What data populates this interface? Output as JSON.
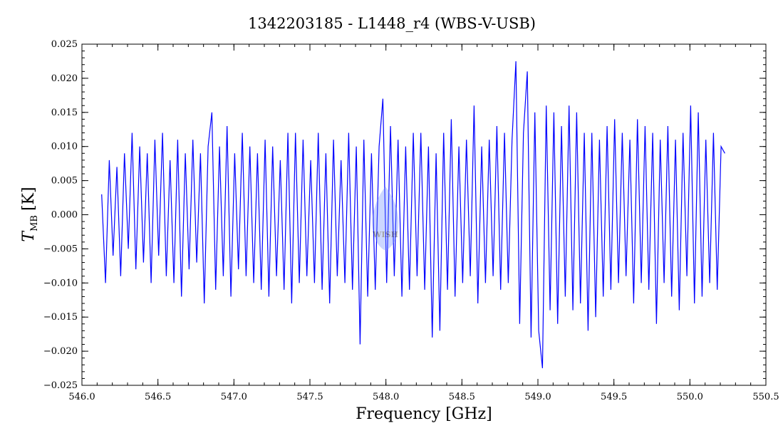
{
  "chart_data": {
    "type": "line",
    "title": "1342203185 - L1448_r4 (WBS-V-USB)",
    "xlabel": "Frequency [GHz]",
    "ylabel_main": "T",
    "ylabel_sub": "MB",
    "ylabel_unit": "[K]",
    "xlim": [
      546.0,
      550.5
    ],
    "ylim": [
      -0.025,
      0.025
    ],
    "x_range": [
      546.13,
      550.23
    ],
    "xticks": [
      546.0,
      546.5,
      547.0,
      547.5,
      548.0,
      548.5,
      549.0,
      549.5,
      550.0,
      550.5
    ],
    "xtick_labels": [
      "546.0",
      "546.5",
      "547.0",
      "547.5",
      "548.0",
      "548.5",
      "549.0",
      "549.5",
      "550.0",
      "550.5"
    ],
    "yticks": [
      0.025,
      0.02,
      0.015,
      0.01,
      0.005,
      0.0,
      -0.005,
      -0.01,
      -0.015,
      -0.02,
      -0.025
    ],
    "ytick_labels": [
      "0.025",
      "0.020",
      "0.015",
      "0.010",
      "0.005",
      "0.000",
      "−0.005",
      "−0.010",
      "−0.015",
      "−0.020",
      "−0.025"
    ],
    "grid": false,
    "series_color": "#0000ff",
    "watermark_text": "WISH",
    "values": [
      0.003,
      -0.01,
      0.008,
      -0.006,
      0.007,
      -0.009,
      0.009,
      -0.005,
      0.012,
      -0.008,
      0.01,
      -0.007,
      0.009,
      -0.01,
      0.011,
      -0.006,
      0.012,
      -0.009,
      0.008,
      -0.01,
      0.011,
      -0.012,
      0.009,
      -0.008,
      0.011,
      -0.007,
      0.009,
      -0.013,
      0.01,
      0.015,
      -0.011,
      0.01,
      -0.009,
      0.013,
      -0.012,
      0.009,
      -0.008,
      0.012,
      -0.009,
      0.01,
      -0.01,
      0.009,
      -0.011,
      0.011,
      -0.012,
      0.01,
      -0.009,
      0.008,
      -0.011,
      0.012,
      -0.013,
      0.012,
      -0.01,
      0.011,
      -0.009,
      0.008,
      -0.01,
      0.012,
      -0.011,
      0.009,
      -0.013,
      0.011,
      -0.009,
      0.008,
      -0.01,
      0.012,
      -0.011,
      0.01,
      -0.019,
      0.011,
      -0.012,
      0.009,
      -0.011,
      0.01,
      0.017,
      -0.01,
      0.013,
      -0.009,
      0.011,
      -0.012,
      0.01,
      -0.011,
      0.012,
      -0.009,
      0.012,
      -0.011,
      0.01,
      -0.018,
      0.009,
      -0.017,
      0.012,
      -0.011,
      0.014,
      -0.012,
      0.01,
      -0.01,
      0.011,
      -0.009,
      0.016,
      -0.013,
      0.01,
      -0.01,
      0.011,
      -0.009,
      0.013,
      -0.011,
      0.012,
      -0.01,
      0.011,
      0.0225,
      -0.016,
      0.012,
      0.021,
      -0.018,
      0.015,
      -0.017,
      -0.0225,
      0.016,
      -0.014,
      0.015,
      -0.016,
      0.013,
      -0.012,
      0.016,
      -0.014,
      0.015,
      -0.013,
      0.012,
      -0.017,
      0.012,
      -0.015,
      0.011,
      -0.012,
      0.013,
      -0.011,
      0.014,
      -0.01,
      0.012,
      -0.009,
      0.011,
      -0.013,
      0.014,
      -0.01,
      0.013,
      -0.011,
      0.012,
      -0.016,
      0.011,
      -0.01,
      0.013,
      -0.012,
      0.011,
      -0.014,
      0.012,
      -0.009,
      0.016,
      -0.013,
      0.015,
      -0.012,
      0.011,
      -0.01,
      0.012,
      -0.011,
      0.01,
      0.009
    ]
  }
}
